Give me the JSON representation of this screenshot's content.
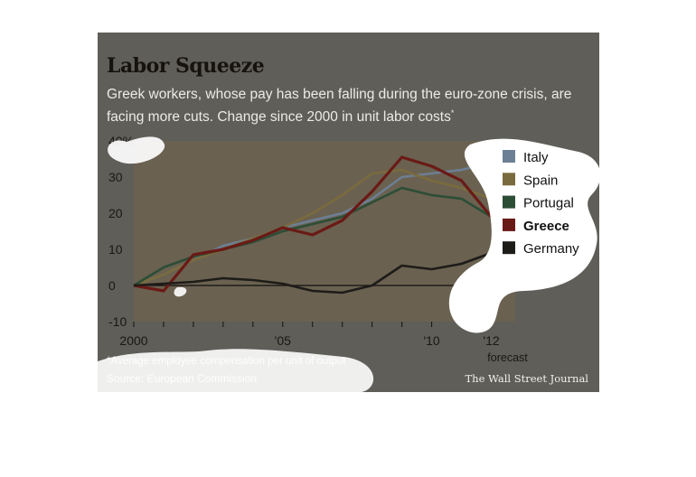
{
  "header": {
    "title": "Labor Squeeze",
    "subtitle": "Greek workers, whose pay has been falling during the euro-zone crisis, are facing more cuts. Change since 2000 in unit labor costs",
    "footnote_mark": "*"
  },
  "footer": {
    "definition": "*Average employee compensation per unit of output",
    "source": "Source: European Commission",
    "publisher": "The Wall Street Journal"
  },
  "chart_data": {
    "type": "line",
    "x": [
      2000,
      2001,
      2002,
      2003,
      2004,
      2005,
      2006,
      2007,
      2008,
      2009,
      2010,
      2011,
      2012
    ],
    "x_tick_labels": [
      {
        "x": 2000,
        "label": "2000"
      },
      {
        "x": 2005,
        "label": "'05"
      },
      {
        "x": 2010,
        "label": "'10"
      },
      {
        "x": 2012,
        "label": "'12"
      }
    ],
    "x_annotation": "forecast",
    "ylim": [
      -10,
      40
    ],
    "y_ticks": [
      -10,
      0,
      10,
      20,
      30,
      40
    ],
    "y_tick_labels": [
      "-10",
      "0",
      "10",
      "20",
      "30",
      "40%"
    ],
    "legend_position": "right",
    "series": [
      {
        "name": "Italy",
        "color": "#6d7f94",
        "values": [
          0,
          3,
          7,
          11,
          13,
          16,
          18,
          20,
          24,
          30,
          31,
          32,
          34
        ]
      },
      {
        "name": "Spain",
        "color": "#7a6b3e",
        "values": [
          0,
          3,
          7,
          10,
          13,
          16,
          20,
          25,
          31,
          32,
          29,
          27,
          24
        ]
      },
      {
        "name": "Portugal",
        "color": "#2c4d36",
        "values": [
          0,
          5,
          8,
          10,
          12,
          15,
          17,
          19,
          23,
          27,
          25,
          24,
          19
        ]
      },
      {
        "name": "Greece",
        "color": "#6a1a16",
        "values": [
          0,
          -1.5,
          8.5,
          10,
          12.5,
          16,
          14,
          18,
          26,
          35.5,
          33,
          29,
          19
        ]
      },
      {
        "name": "Germany",
        "color": "#1e1c19",
        "values": [
          0,
          0.5,
          1,
          2,
          1.5,
          0.5,
          -1.5,
          -2,
          0,
          5.5,
          4.5,
          6,
          9
        ]
      }
    ]
  }
}
